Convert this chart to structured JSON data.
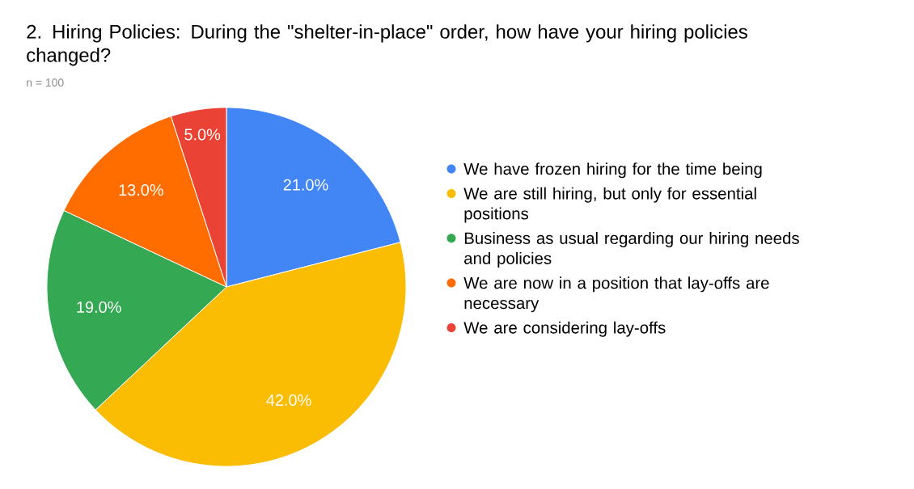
{
  "chart_data": {
    "type": "pie",
    "title": "2. Hiring Policies: During the \"shelter-in-place\" order, how have your hiring policies changed?",
    "subtitle": "n = 100",
    "categories": [
      "We have frozen hiring for the time being",
      "We are still hiring, but only for essential positions",
      "Business as usual regarding our hiring needs and policies",
      "We are now in a position that lay-offs are necessary",
      "We are considering lay-offs"
    ],
    "values": [
      21.0,
      42.0,
      19.0,
      13.0,
      5.0
    ],
    "value_labels": [
      "21.0%",
      "42.0%",
      "19.0%",
      "13.0%",
      "5.0%"
    ],
    "colors": [
      "#4285f4",
      "#fbbc04",
      "#34a853",
      "#ff6d01",
      "#ea4335"
    ],
    "legend": "right"
  }
}
